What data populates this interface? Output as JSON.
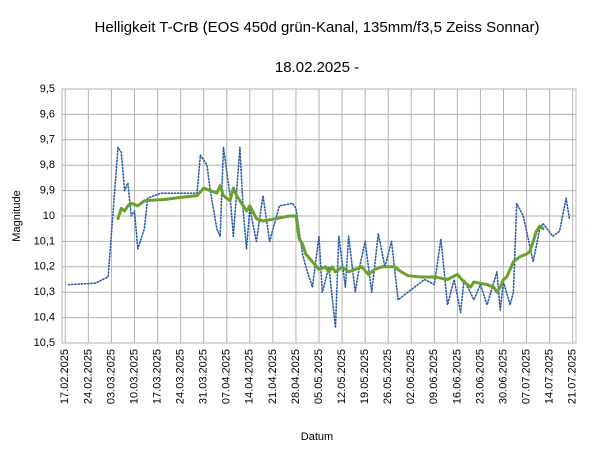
{
  "chart_data": {
    "type": "line",
    "title": "Helligkeit T-CrB (EOS 450d grün-Kanal, 135mm/f3,5 Zeiss Sonnar)",
    "subtitle": "18.02.2025 -",
    "y_label": "Magnitude",
    "x_label": "Datum",
    "ylim": [
      10.5,
      9.5
    ],
    "yticks": [
      {
        "value": 9.5,
        "label": "9,5"
      },
      {
        "value": 9.6,
        "label": "9,6"
      },
      {
        "value": 9.7,
        "label": "9,7"
      },
      {
        "value": 9.8,
        "label": "9,8"
      },
      {
        "value": 9.9,
        "label": "9,9"
      },
      10,
      {
        "value": 10.1,
        "label": "10,1"
      },
      {
        "value": 10.2,
        "label": "10,2"
      },
      {
        "value": 10.3,
        "label": "10,3"
      },
      {
        "value": 10.4,
        "label": "10,4"
      },
      {
        "value": 10.5,
        "label": "10,5"
      }
    ],
    "xlim": [
      "16.02.2025",
      "22.07.2025"
    ],
    "xticks": [
      "17.02.2025",
      "24.02.2025",
      "03.03.2025",
      "10.03.2025",
      "17.03.2025",
      "24.03.2025",
      "31.03.2025",
      "07.04.2025",
      "14.04.2025",
      "21.04.2025",
      "28.04.2025",
      "05.05.2025",
      "12.05.2025",
      "19.05.2025",
      "26.05.2025",
      "02.06.2025",
      "09.06.2025",
      "16.06.2025",
      "23.06.2025",
      "30.06.2025",
      "07.07.2025",
      "14.07.2025",
      "21.07.2025"
    ],
    "grid": true,
    "series": [
      {
        "color": "#2a5caa",
        "style": "dotted",
        "x": [
          "18.02.2025",
          "26.02.2025",
          "02.03.2025",
          "05.03.2025",
          "06.03.2025",
          "07.03.2025",
          "08.03.2025",
          "09.03.2025",
          "10.03.2025",
          "11.03.2025",
          "13.03.2025",
          "14.03.2025",
          "18.03.2025",
          "24.03.2025",
          "29.03.2025",
          "30.03.2025",
          "01.04.2025",
          "02.04.2025",
          "04.04.2025",
          "05.04.2025",
          "06.04.2025",
          "08.04.2025",
          "09.04.2025",
          "11.04.2025",
          "12.04.2025",
          "13.04.2025",
          "14.04.2025",
          "16.04.2025",
          "18.04.2025",
          "20.04.2025",
          "23.04.2025",
          "27.04.2025",
          "28.04.2025",
          "30.04.2025",
          "01.05.2025",
          "03.05.2025",
          "05.05.2025",
          "06.05.2025",
          "08.05.2025",
          "10.05.2025",
          "11.05.2025",
          "13.05.2025",
          "14.05.2025",
          "16.05.2025",
          "17.05.2025",
          "19.05.2025",
          "21.05.2025",
          "23.05.2025",
          "25.05.2025",
          "27.05.2025",
          "29.05.2025",
          "01.06.2025",
          "03.06.2025",
          "06.06.2025",
          "09.06.2025",
          "11.06.2025",
          "13.06.2025",
          "15.06.2025",
          "17.06.2025",
          "18.06.2025",
          "21.06.2025",
          "23.06.2025",
          "25.06.2025",
          "28.06.2025",
          "29.06.2025",
          "30.06.2025",
          "02.07.2025",
          "03.07.2025",
          "04.07.2025",
          "06.07.2025",
          "09.07.2025",
          "11.07.2025",
          "12.07.2025",
          "15.07.2025",
          "17.07.2025",
          "19.07.2025",
          "20.07.2025"
        ],
        "values": [
          10.27,
          10.265,
          10.24,
          9.73,
          9.75,
          9.9,
          9.87,
          10.0,
          9.98,
          10.13,
          10.05,
          9.93,
          9.91,
          9.91,
          9.91,
          9.76,
          9.8,
          9.9,
          10.05,
          10.08,
          9.73,
          9.92,
          10.08,
          9.73,
          9.98,
          10.13,
          9.97,
          10.1,
          9.92,
          10.1,
          9.96,
          9.95,
          9.97,
          10.15,
          10.2,
          10.28,
          10.08,
          10.3,
          10.2,
          10.44,
          10.08,
          10.28,
          10.08,
          10.3,
          10.22,
          10.1,
          10.3,
          10.07,
          10.2,
          10.1,
          10.33,
          10.3,
          10.28,
          10.25,
          10.27,
          10.09,
          10.35,
          10.25,
          10.38,
          10.25,
          10.33,
          10.27,
          10.35,
          10.22,
          10.37,
          10.26,
          10.35,
          10.3,
          9.95,
          10.0,
          10.18,
          10.05,
          10.03,
          10.08,
          10.06,
          9.93,
          10.01
        ]
      },
      {
        "color": "#6aa12c",
        "style": "solid",
        "x": [
          "05.03.2025",
          "06.03.2025",
          "07.03.2025",
          "08.03.2025",
          "09.03.2025",
          "11.03.2025",
          "13.03.2025",
          "19.03.2025",
          "25.03.2025",
          "29.03.2025",
          "31.03.2025",
          "02.04.2025",
          "04.04.2025",
          "05.04.2025",
          "06.04.2025",
          "08.04.2025",
          "09.04.2025",
          "10.04.2025",
          "12.04.2025",
          "13.04.2025",
          "14.04.2025",
          "16.04.2025",
          "18.04.2025",
          "22.04.2025",
          "26.04.2025",
          "28.04.2025",
          "29.04.2025",
          "30.04.2025",
          "01.05.2025",
          "03.05.2025",
          "05.05.2025",
          "07.05.2025",
          "08.05.2025",
          "09.05.2025",
          "10.05.2025",
          "12.05.2025",
          "14.05.2025",
          "16.05.2025",
          "18.05.2025",
          "20.05.2025",
          "22.05.2025",
          "24.05.2025",
          "26.05.2025",
          "28.05.2025",
          "30.05.2025",
          "01.06.2025",
          "05.06.2025",
          "09.06.2025",
          "13.06.2025",
          "16.06.2025",
          "18.06.2025",
          "20.06.2025",
          "21.06.2025",
          "23.06.2025",
          "25.06.2025",
          "27.06.2025",
          "28.06.2025",
          "29.06.2025",
          "30.06.2025",
          "01.07.2025",
          "03.07.2025",
          "05.07.2025",
          "07.07.2025",
          "08.07.2025",
          "09.07.2025",
          "10.07.2025",
          "11.07.2025",
          "12.07.2025"
        ],
        "values": [
          10.01,
          9.97,
          9.98,
          9.96,
          9.95,
          9.96,
          9.94,
          9.935,
          9.925,
          9.92,
          9.89,
          9.9,
          9.91,
          9.88,
          9.92,
          9.94,
          9.89,
          9.92,
          9.96,
          9.98,
          9.96,
          10.01,
          10.02,
          10.01,
          10.0,
          10.0,
          10.09,
          10.11,
          10.15,
          10.18,
          10.21,
          10.2,
          10.22,
          10.2,
          10.22,
          10.2,
          10.22,
          10.21,
          10.2,
          10.23,
          10.21,
          10.2,
          10.2,
          10.2,
          10.22,
          10.235,
          10.24,
          10.24,
          10.25,
          10.23,
          10.26,
          10.28,
          10.26,
          10.265,
          10.27,
          10.28,
          10.3,
          10.28,
          10.25,
          10.24,
          10.18,
          10.16,
          10.15,
          10.14,
          10.1,
          10.06,
          10.04,
          10.05
        ]
      }
    ]
  }
}
